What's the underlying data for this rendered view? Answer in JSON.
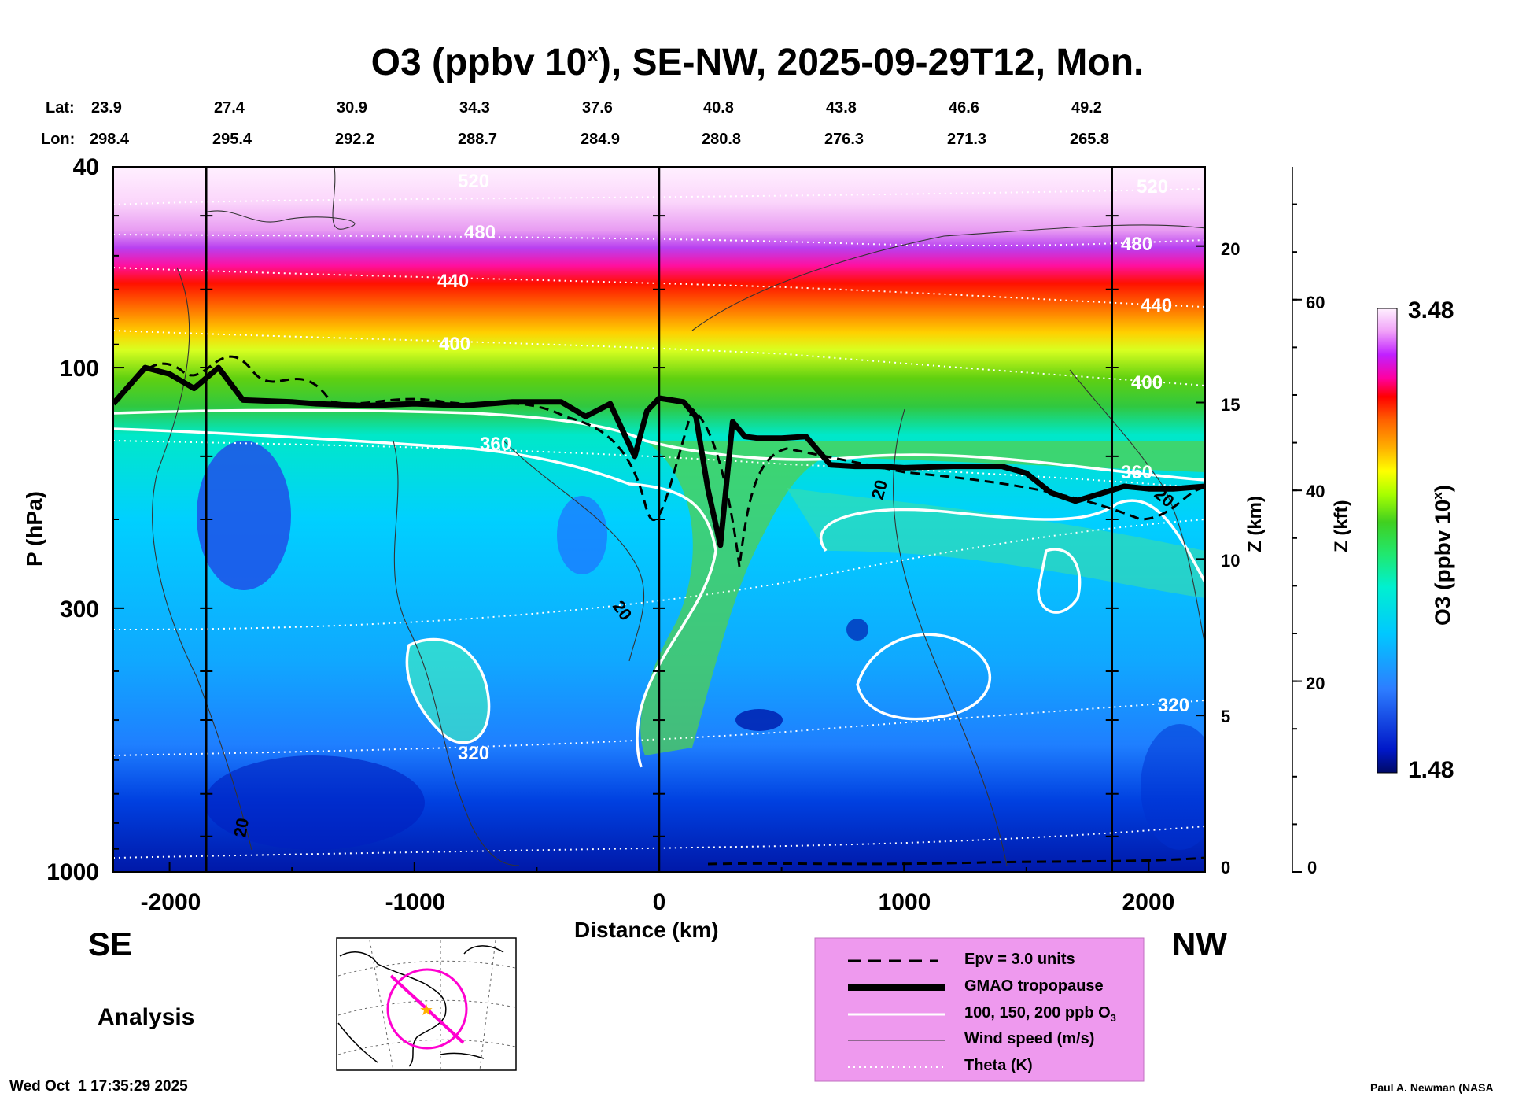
{
  "title_main": "O3 (ppbv 10",
  "title_sup": "x",
  "title_rest": "), SE-NW, 2025-09-29T12, Mon.",
  "lat_label": "Lat:",
  "lon_label": "Lon:",
  "lats": [
    "23.9",
    "27.4",
    "30.9",
    "34.3",
    "37.6",
    "40.8",
    "43.8",
    "46.6",
    "49.2"
  ],
  "lons": [
    "298.4",
    "295.4",
    "292.2",
    "288.7",
    "284.9",
    "280.8",
    "276.3",
    "271.3",
    "265.8"
  ],
  "left_dir": "SE",
  "right_dir": "NW",
  "analysis": "Analysis",
  "timestamp": "Wed Oct  1 17:35:29 2025",
  "credit": "Paul A. Newman (NASA",
  "chart_data": {
    "type": "heatmap",
    "title": "O3 (ppbv 10^x), SE-NW, 2025-09-29T12, Mon.",
    "xlabel": "Distance (km)",
    "ylabel": "P (hPa)",
    "xlim": [
      -2230,
      2230
    ],
    "ylim": [
      1000,
      40
    ],
    "y_scale": "log",
    "xticks": [
      -2000,
      -1000,
      0,
      1000,
      2000
    ],
    "yticks": [
      40,
      100,
      300,
      1000
    ],
    "z_km_label": "Z (km)",
    "z_km_ticks": [
      0,
      5,
      10,
      15,
      20
    ],
    "z_kft_label": "Z (kft)",
    "z_kft_ticks": [
      0,
      20,
      40,
      60
    ],
    "colorbar": {
      "label": "O3 (ppbv 10",
      "label_sup": "x",
      "label_end": ")",
      "min": "1.48",
      "max": "3.48"
    },
    "vertical_markers_km": [
      -1850,
      0,
      1850
    ],
    "theta_labels": [
      "520",
      "480",
      "440",
      "400",
      "360",
      "320"
    ],
    "theta_label_values": [
      520,
      480,
      440,
      400,
      360,
      320
    ],
    "wind_labels": [
      "20",
      "20",
      "20",
      "20"
    ],
    "tropopause": {
      "x": [
        -2230,
        -2100,
        -2000,
        -1900,
        -1800,
        -1700,
        -1500,
        -1400,
        -1200,
        -1000,
        -800,
        -600,
        -400,
        -300,
        -200,
        -100,
        -50,
        0,
        100,
        150,
        200,
        250,
        300,
        350,
        400,
        500,
        600,
        700,
        800,
        900,
        1000,
        1200,
        1400,
        1500,
        1600,
        1700,
        1800,
        1900,
        2000,
        2100,
        2230
      ],
      "p": [
        118,
        100,
        103,
        110,
        100,
        116,
        117,
        118,
        119,
        118,
        119,
        117,
        117,
        125,
        118,
        150,
        122,
        115,
        117,
        125,
        175,
        225,
        128,
        137,
        138,
        138,
        137,
        156,
        157,
        157,
        158,
        157,
        157,
        162,
        177,
        184,
        178,
        172,
        174,
        174,
        172
      ]
    },
    "legend": [
      {
        "label": "Epv = 3.0 units",
        "style": "dashed"
      },
      {
        "label": "GMAO tropopause",
        "style": "thick"
      },
      {
        "label": "100, 150, 200 ppb O",
        "sub": "3",
        "style": "white"
      },
      {
        "label": "Wind speed (m/s)",
        "style": "thin"
      },
      {
        "label": "Theta (K)",
        "style": "dotted"
      }
    ]
  }
}
